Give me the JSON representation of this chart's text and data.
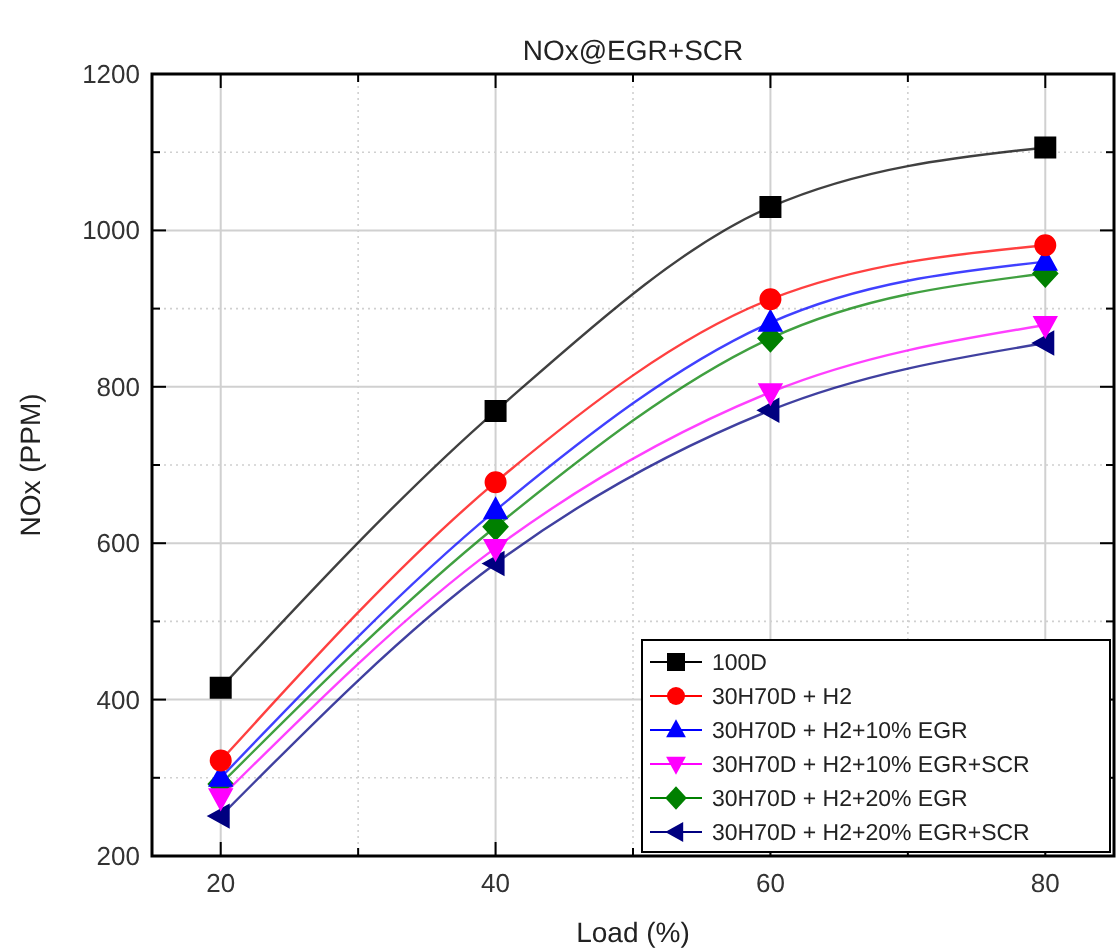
{
  "chart_data": {
    "type": "line",
    "title": "NOx@EGR+SCR",
    "xlabel": "Load (%)",
    "ylabel": "NOx (PPM)",
    "x": [
      20,
      40,
      60,
      80
    ],
    "xlim": [
      15,
      85
    ],
    "xticks": [
      20,
      {
        "value": 30,
        "label": null
      },
      40,
      {
        "value": 50,
        "label": null
      },
      60,
      {
        "value": 70,
        "label": null
      },
      80
    ],
    "ylim": [
      200,
      1200
    ],
    "yticks": [
      200,
      {
        "value": 300,
        "label": null
      },
      400,
      {
        "value": 500,
        "label": null
      },
      600,
      {
        "value": 700,
        "label": null
      },
      800,
      {
        "value": 900,
        "label": null
      },
      1000,
      {
        "value": 1100,
        "label": null
      },
      1200
    ],
    "grid": true,
    "legend": "bottom right",
    "line_style": "solid",
    "series": [
      {
        "name": "100D",
        "color": "#000000",
        "marker": "square",
        "values": [
          415,
          769,
          1030,
          1106
        ]
      },
      {
        "name": "30H70D + H2",
        "color": "#ff0000",
        "marker": "circle",
        "values": [
          322,
          678,
          912,
          981
        ]
      },
      {
        "name": "30H70D + H2+10% EGR",
        "color": "#0000ff",
        "marker": "triangle",
        "values": [
          300,
          642,
          882,
          960
        ]
      },
      {
        "name": "30H70D + H2+10% EGR+SCR",
        "color": "#ff00ff",
        "marker": "triangle-down",
        "values": [
          275,
          594,
          793,
          879
        ]
      },
      {
        "name": "30H70D + H2+20% EGR",
        "color": "#008000",
        "marker": "diamond",
        "values": [
          292,
          621,
          862,
          945
        ]
      },
      {
        "name": "30H70D + H2+20% EGR+SCR",
        "color": "#000080",
        "marker": "triangle-left",
        "values": [
          251,
          574,
          770,
          856
        ]
      }
    ]
  }
}
